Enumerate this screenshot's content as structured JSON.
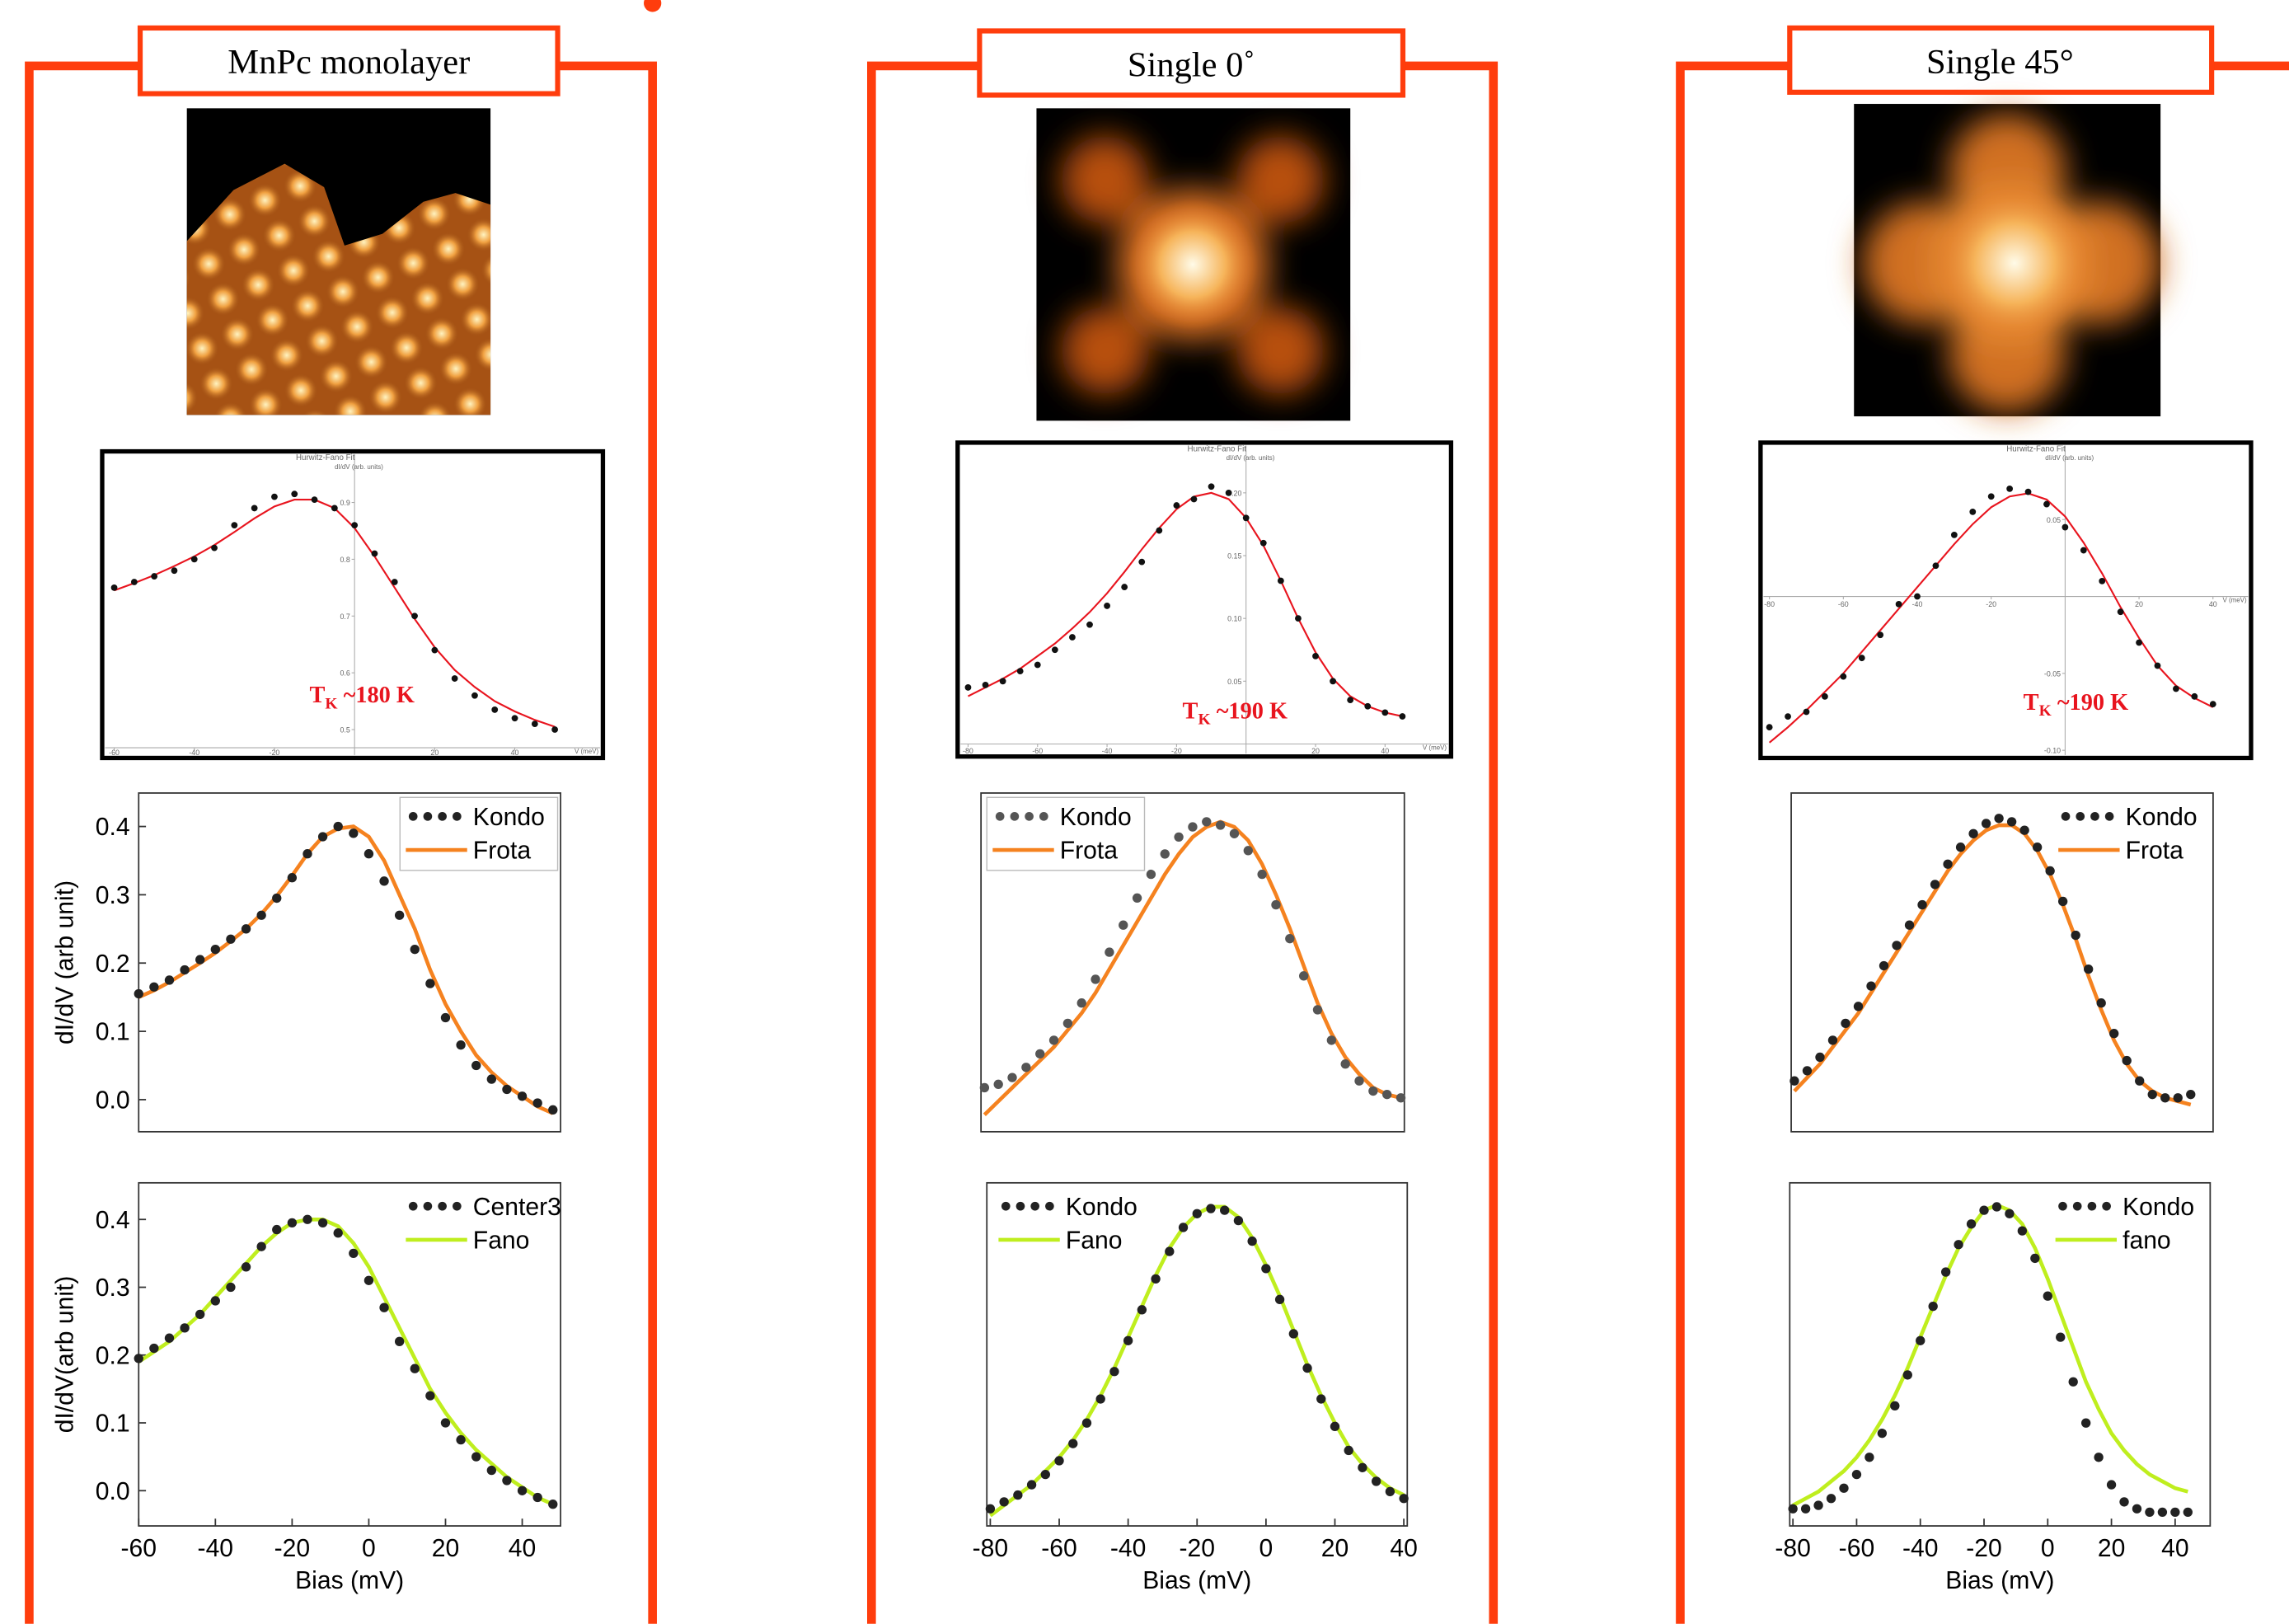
{
  "panel_titles": [
    "MnPc monolayer",
    "Single 0˚",
    "Single 45°"
  ],
  "chart_data": [
    {
      "type": "line",
      "title": "Hurwitz-Fano Fit",
      "ylabel": "dI/dV (arb. units)",
      "xlabel": "V (meV)",
      "annotation": [
        "T",
        "K",
        "~180 K"
      ],
      "x": [
        -60,
        -55,
        -50,
        -45,
        -40,
        -35,
        -30,
        -25,
        -20,
        -15,
        -10,
        -5,
        0,
        5,
        10,
        15,
        20,
        25,
        30,
        35,
        40,
        45,
        50
      ],
      "series": [
        {
          "style": "dots",
          "color": "#111111",
          "values": [
            0.75,
            0.76,
            0.77,
            0.78,
            0.8,
            0.82,
            0.86,
            0.89,
            0.91,
            0.915,
            0.905,
            0.89,
            0.86,
            0.81,
            0.76,
            0.7,
            0.64,
            0.59,
            0.56,
            0.535,
            0.52,
            0.51,
            0.5
          ]
        },
        {
          "style": "line",
          "color": "#e8141e",
          "values": [
            0.745,
            0.758,
            0.772,
            0.788,
            0.805,
            0.825,
            0.848,
            0.872,
            0.893,
            0.905,
            0.905,
            0.89,
            0.855,
            0.805,
            0.75,
            0.695,
            0.645,
            0.605,
            0.575,
            0.55,
            0.532,
            0.517,
            0.505
          ]
        }
      ],
      "xlim": [
        -63,
        62
      ],
      "ylim": [
        0.45,
        0.99
      ],
      "xticks": [
        -60,
        -40,
        -20,
        20,
        40
      ],
      "yticks": [
        0.5,
        0.6,
        0.7,
        0.8,
        0.9
      ]
    },
    {
      "type": "line",
      "ylabel": "dI/dV (arb unit)",
      "legend": "upper right",
      "x": [
        -60,
        -56,
        -52,
        -48,
        -44,
        -40,
        -36,
        -32,
        -28,
        -24,
        -20,
        -16,
        -12,
        -8,
        -4,
        0,
        4,
        8,
        12,
        16,
        20,
        24,
        28,
        32,
        36,
        40,
        44,
        48
      ],
      "series": [
        {
          "name": "Kondo",
          "style": "dots",
          "color": "#222222",
          "values": [
            0.155,
            0.165,
            0.175,
            0.19,
            0.205,
            0.22,
            0.235,
            0.25,
            0.27,
            0.295,
            0.325,
            0.36,
            0.385,
            0.4,
            0.39,
            0.36,
            0.32,
            0.27,
            0.22,
            0.17,
            0.12,
            0.08,
            0.05,
            0.03,
            0.015,
            0.005,
            -0.005,
            -0.015
          ]
        },
        {
          "name": "Frota",
          "style": "line",
          "color": "#f5821f",
          "values": [
            0.15,
            0.16,
            0.172,
            0.186,
            0.2,
            0.215,
            0.232,
            0.25,
            0.272,
            0.298,
            0.328,
            0.36,
            0.385,
            0.397,
            0.4,
            0.385,
            0.35,
            0.3,
            0.25,
            0.19,
            0.14,
            0.1,
            0.065,
            0.04,
            0.02,
            0.005,
            -0.01,
            -0.02
          ]
        }
      ],
      "xlim": [
        -60,
        50
      ],
      "ylim": [
        -0.047,
        0.449
      ],
      "yticks": [
        {
          "value": 0,
          "label": "0.0"
        },
        0.1,
        0.2,
        0.3,
        0.4
      ]
    },
    {
      "type": "line",
      "ylabel": "dI/dV(arb unit)",
      "xlabel": "Bias (mV)",
      "legend": "upper right",
      "x": [
        -60,
        -56,
        -52,
        -48,
        -44,
        -40,
        -36,
        -32,
        -28,
        -24,
        -20,
        -16,
        -12,
        -8,
        -4,
        0,
        4,
        8,
        12,
        16,
        20,
        24,
        28,
        32,
        36,
        40,
        44,
        48
      ],
      "series": [
        {
          "name": "Center3",
          "style": "dots",
          "color": "#222222",
          "values": [
            0.195,
            0.21,
            0.225,
            0.24,
            0.26,
            0.28,
            0.3,
            0.33,
            0.36,
            0.385,
            0.395,
            0.4,
            0.395,
            0.38,
            0.35,
            0.31,
            0.27,
            0.22,
            0.18,
            0.14,
            0.1,
            0.075,
            0.05,
            0.03,
            0.015,
            0,
            -0.01,
            -0.02
          ]
        },
        {
          "name": "Fano",
          "style": "line",
          "color": "#bfee1e",
          "values": [
            0.19,
            0.205,
            0.22,
            0.24,
            0.26,
            0.285,
            0.31,
            0.335,
            0.36,
            0.38,
            0.395,
            0.4,
            0.4,
            0.39,
            0.365,
            0.33,
            0.285,
            0.24,
            0.195,
            0.15,
            0.115,
            0.085,
            0.06,
            0.04,
            0.02,
            0.005,
            -0.01,
            -0.02
          ]
        }
      ],
      "xlim": [
        -60,
        50
      ],
      "ylim": [
        -0.052,
        0.454
      ],
      "xticks": [
        -60,
        -40,
        -20,
        0,
        20,
        40
      ],
      "yticks": [
        {
          "value": 0,
          "label": "0.0"
        },
        0.1,
        0.2,
        0.3,
        0.4
      ]
    },
    {
      "type": "line",
      "title": "Hurwitz-Fano Fit",
      "ylabel": "dI/dV (arb. units)",
      "xlabel": "V (meV)",
      "annotation": [
        "T",
        "K",
        "~190 K"
      ],
      "x": [
        -80,
        -75,
        -70,
        -65,
        -60,
        -55,
        -50,
        -45,
        -40,
        -35,
        -30,
        -25,
        -20,
        -15,
        -10,
        -5,
        0,
        5,
        10,
        15,
        20,
        25,
        30,
        35,
        40,
        45
      ],
      "series": [
        {
          "style": "dots",
          "color": "#111111",
          "values": [
            0.045,
            0.047,
            0.05,
            0.058,
            0.063,
            0.075,
            0.085,
            0.095,
            0.11,
            0.125,
            0.145,
            0.17,
            0.19,
            0.195,
            0.205,
            0.2,
            0.18,
            0.16,
            0.13,
            0.1,
            0.07,
            0.05,
            0.035,
            0.03,
            0.025,
            0.022
          ]
        },
        {
          "style": "line",
          "color": "#e8141e",
          "values": [
            0.038,
            0.045,
            0.052,
            0.06,
            0.07,
            0.08,
            0.092,
            0.105,
            0.12,
            0.137,
            0.155,
            0.172,
            0.187,
            0.197,
            0.2,
            0.195,
            0.18,
            0.158,
            0.13,
            0.1,
            0.073,
            0.052,
            0.038,
            0.03,
            0.025,
            0.022
          ]
        }
      ],
      "xlim": [
        -83,
        59
      ],
      "ylim": [
        -0.01,
        0.24
      ],
      "xticks": [
        -80,
        -60,
        -40,
        -20,
        20,
        40
      ],
      "yticks": [
        0.05,
        {
          "value": 0.1,
          "label": "0.10"
        },
        0.15,
        {
          "value": 0.2,
          "label": "0.20"
        }
      ]
    },
    {
      "type": "line",
      "legend": "upper left",
      "x": [
        -80,
        -76,
        -72,
        -68,
        -64,
        -60,
        -56,
        -52,
        -48,
        -44,
        -40,
        -36,
        -32,
        -28,
        -24,
        -20,
        -16,
        -12,
        -8,
        -4,
        0,
        4,
        8,
        12,
        16,
        20,
        24,
        28,
        32,
        36,
        40
      ],
      "series": [
        {
          "name": "Kondo",
          "style": "dots",
          "color": "#555555",
          "values": [
            0.13,
            0.14,
            0.16,
            0.19,
            0.23,
            0.27,
            0.32,
            0.38,
            0.45,
            0.53,
            0.61,
            0.69,
            0.76,
            0.82,
            0.87,
            0.9,
            0.915,
            0.905,
            0.88,
            0.83,
            0.76,
            0.67,
            0.57,
            0.46,
            0.36,
            0.27,
            0.2,
            0.15,
            0.12,
            0.11,
            0.1
          ]
        },
        {
          "name": "Frota",
          "style": "line",
          "color": "#f5821f",
          "values": [
            0.05,
            0.09,
            0.13,
            0.17,
            0.21,
            0.25,
            0.3,
            0.35,
            0.41,
            0.48,
            0.55,
            0.62,
            0.69,
            0.76,
            0.82,
            0.87,
            0.9,
            0.915,
            0.9,
            0.86,
            0.79,
            0.7,
            0.6,
            0.49,
            0.38,
            0.29,
            0.22,
            0.17,
            0.13,
            0.11,
            0.1
          ]
        }
      ],
      "xlim": [
        -81,
        41
      ],
      "ylim": [
        0,
        1
      ]
    },
    {
      "type": "line",
      "xlabel": "Bias (mV)",
      "legend": "upper left",
      "x": [
        -80,
        -76,
        -72,
        -68,
        -64,
        -60,
        -56,
        -52,
        -48,
        -44,
        -40,
        -36,
        -32,
        -28,
        -24,
        -20,
        -16,
        -12,
        -8,
        -4,
        0,
        4,
        8,
        12,
        16,
        20,
        24,
        28,
        32,
        36,
        40
      ],
      "series": [
        {
          "name": "Kondo",
          "style": "dots",
          "color": "#222222",
          "values": [
            0.05,
            0.07,
            0.09,
            0.12,
            0.15,
            0.19,
            0.24,
            0.3,
            0.37,
            0.45,
            0.54,
            0.63,
            0.72,
            0.8,
            0.87,
            0.91,
            0.925,
            0.92,
            0.89,
            0.83,
            0.75,
            0.66,
            0.56,
            0.46,
            0.37,
            0.29,
            0.22,
            0.17,
            0.13,
            0.1,
            0.08
          ]
        },
        {
          "name": "Fano",
          "style": "line",
          "color": "#bfee1e",
          "values": [
            0.03,
            0.06,
            0.09,
            0.12,
            0.16,
            0.2,
            0.25,
            0.31,
            0.38,
            0.46,
            0.55,
            0.64,
            0.73,
            0.81,
            0.87,
            0.91,
            0.93,
            0.93,
            0.9,
            0.84,
            0.76,
            0.67,
            0.57,
            0.47,
            0.38,
            0.3,
            0.23,
            0.18,
            0.14,
            0.11,
            0.09
          ]
        }
      ],
      "xlim": [
        -81,
        41
      ],
      "ylim": [
        0,
        1
      ],
      "xticks": [
        -80,
        -60,
        -40,
        -20,
        0,
        20,
        40
      ]
    },
    {
      "type": "line",
      "title": "Hurwitz-Fano Fit",
      "ylabel": "dI/dV (arb. units)",
      "xlabel": "V (meV)",
      "annotation": [
        "T",
        "K",
        "~190 K"
      ],
      "x": [
        -80,
        -75,
        -70,
        -65,
        -60,
        -55,
        -50,
        -45,
        -40,
        -35,
        -30,
        -25,
        -20,
        -15,
        -10,
        -5,
        0,
        5,
        10,
        15,
        20,
        25,
        30,
        35,
        40
      ],
      "series": [
        {
          "style": "dots",
          "color": "#111111",
          "values": [
            -0.085,
            -0.078,
            -0.075,
            -0.065,
            -0.052,
            -0.04,
            -0.025,
            -0.005,
            0,
            0.02,
            0.04,
            0.055,
            0.065,
            0.07,
            0.068,
            0.06,
            0.045,
            0.03,
            0.01,
            -0.01,
            -0.03,
            -0.045,
            -0.06,
            -0.065,
            -0.07
          ]
        },
        {
          "style": "line",
          "color": "#e8141e",
          "values": [
            -0.095,
            -0.085,
            -0.074,
            -0.062,
            -0.05,
            -0.036,
            -0.022,
            -0.008,
            0.006,
            0.02,
            0.034,
            0.047,
            0.058,
            0.065,
            0.067,
            0.063,
            0.052,
            0.035,
            0.015,
            -0.007,
            -0.027,
            -0.045,
            -0.058,
            -0.066,
            -0.072
          ]
        }
      ],
      "xlim": [
        -82.4,
        50.3
      ],
      "ylim": [
        -0.105,
        0.1
      ],
      "xticks": [
        -80,
        -60,
        -40,
        -20,
        20,
        40
      ],
      "yticks": [
        0.05,
        -0.05,
        {
          "value": -0.1,
          "label": "-0.10"
        }
      ]
    },
    {
      "type": "line",
      "legend": "upper right",
      "x": [
        -80,
        -76,
        -72,
        -68,
        -64,
        -60,
        -56,
        -52,
        -48,
        -44,
        -40,
        -36,
        -32,
        -28,
        -24,
        -20,
        -16,
        -12,
        -8,
        -4,
        0,
        4,
        8,
        12,
        16,
        20,
        24,
        28,
        32,
        36,
        40,
        44
      ],
      "series": [
        {
          "name": "Kondo",
          "style": "dots",
          "color": "#222222",
          "values": [
            0.15,
            0.18,
            0.22,
            0.27,
            0.32,
            0.37,
            0.43,
            0.49,
            0.55,
            0.61,
            0.67,
            0.73,
            0.79,
            0.84,
            0.88,
            0.91,
            0.925,
            0.915,
            0.89,
            0.84,
            0.77,
            0.68,
            0.58,
            0.48,
            0.38,
            0.29,
            0.21,
            0.15,
            0.11,
            0.1,
            0.1,
            0.11
          ]
        },
        {
          "name": "Frota",
          "style": "line",
          "color": "#f5821f",
          "values": [
            0.12,
            0.16,
            0.2,
            0.25,
            0.3,
            0.35,
            0.41,
            0.47,
            0.53,
            0.59,
            0.65,
            0.71,
            0.77,
            0.82,
            0.86,
            0.89,
            0.905,
            0.905,
            0.88,
            0.83,
            0.76,
            0.67,
            0.57,
            0.46,
            0.36,
            0.27,
            0.2,
            0.15,
            0.12,
            0.1,
            0.09,
            0.08
          ]
        }
      ],
      "xlim": [
        -81,
        51
      ],
      "ylim": [
        0,
        1
      ]
    },
    {
      "type": "line",
      "xlabel": "Bias (mV)",
      "legend": "upper right",
      "x": [
        -80,
        -76,
        -72,
        -68,
        -64,
        -60,
        -56,
        -52,
        -48,
        -44,
        -40,
        -36,
        -32,
        -28,
        -24,
        -20,
        -16,
        -12,
        -8,
        -4,
        0,
        4,
        8,
        12,
        16,
        20,
        24,
        28,
        32,
        36,
        40,
        44
      ],
      "series": [
        {
          "name": "Kondo",
          "style": "dots",
          "color": "#222222",
          "values": [
            0.05,
            0.05,
            0.06,
            0.08,
            0.11,
            0.15,
            0.2,
            0.27,
            0.35,
            0.44,
            0.54,
            0.64,
            0.74,
            0.82,
            0.88,
            0.92,
            0.93,
            0.91,
            0.86,
            0.78,
            0.67,
            0.55,
            0.42,
            0.3,
            0.2,
            0.12,
            0.07,
            0.05,
            0.04,
            0.04,
            0.04,
            0.04
          ]
        },
        {
          "name": "fano",
          "style": "line",
          "color": "#bfee1e",
          "values": [
            0.06,
            0.08,
            0.1,
            0.13,
            0.16,
            0.2,
            0.25,
            0.31,
            0.38,
            0.46,
            0.55,
            0.64,
            0.73,
            0.81,
            0.87,
            0.92,
            0.935,
            0.92,
            0.88,
            0.81,
            0.72,
            0.62,
            0.52,
            0.42,
            0.34,
            0.27,
            0.22,
            0.18,
            0.15,
            0.13,
            0.11,
            0.1
          ]
        }
      ],
      "xlim": [
        -81,
        51
      ],
      "ylim": [
        0,
        1
      ],
      "xticks": [
        -80,
        -60,
        -40,
        -20,
        0,
        20,
        40
      ]
    }
  ]
}
